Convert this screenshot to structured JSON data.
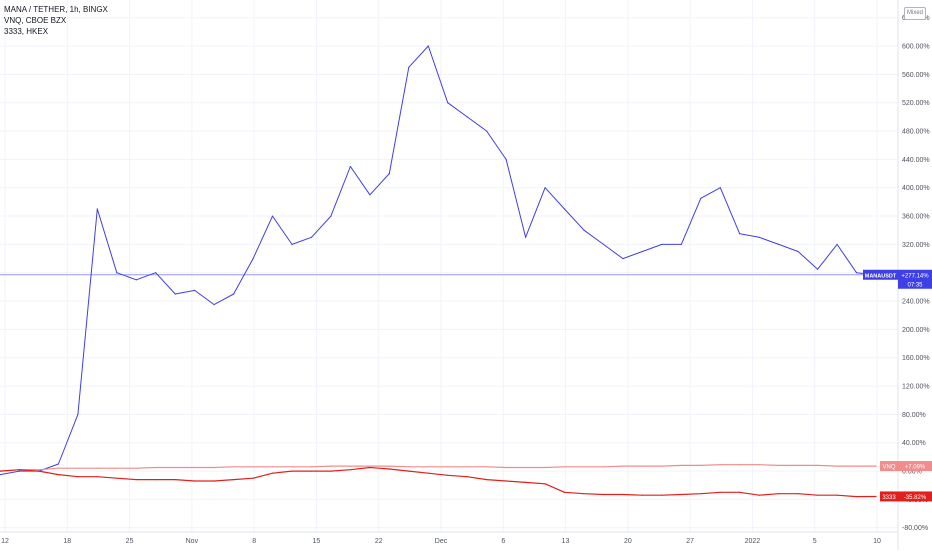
{
  "legend": {
    "line1": "MANA / TETHER, 1h, BINGX",
    "line2": "VNQ, CBOE BZX",
    "line3": "3333, HKEX"
  },
  "scale_mode": "Mixed",
  "colors": {
    "mana": "#3f3fe6",
    "vnq": "#f08c8c",
    "hk3333": "#e0201c",
    "mana_hline": "#9999ee",
    "axis_text": "#50535e",
    "grid": "#f0f3fa"
  },
  "chart_data": {
    "type": "line",
    "title": "",
    "xlabel": "",
    "ylabel": "",
    "y_unit": "%",
    "ylim": [
      -86,
      665
    ],
    "grid": true,
    "legend_placement": "top-left",
    "x_axis_labels": [
      "12",
      "18",
      "25",
      "Nov",
      "8",
      "15",
      "22",
      "Dec",
      "6",
      "13",
      "20",
      "27",
      "2022",
      "5",
      "10"
    ],
    "y_axis_labels": [
      "640.00%",
      "600.00%",
      "560.00%",
      "520.00%",
      "480.00%",
      "440.00%",
      "400.00%",
      "360.00%",
      "320.00%",
      "280.00%",
      "240.00%",
      "200.00%",
      "160.00%",
      "120.00%",
      "80.00%",
      "40.00%",
      "0.00%",
      "-40.00%",
      "-80.00%"
    ],
    "x": [
      "Oct 12",
      "Oct 18",
      "Oct 25",
      "Oct 28",
      "Oct 29",
      "Oct 30",
      "Oct 31",
      "Nov 1",
      "Nov 2",
      "Nov 4",
      "Nov 6",
      "Nov 8",
      "Nov 10",
      "Nov 12",
      "Nov 14",
      "Nov 15",
      "Nov 17",
      "Nov 19",
      "Nov 21",
      "Nov 22",
      "Nov 24",
      "Nov 25",
      "Nov 27",
      "Nov 29",
      "Dec 1",
      "Dec 3",
      "Dec 5",
      "Dec 6",
      "Dec 8",
      "Dec 10",
      "Dec 13",
      "Dec 15",
      "Dec 17",
      "Dec 20",
      "Dec 22",
      "Dec 24",
      "Dec 27",
      "Dec 29",
      "Dec 31",
      "Jan 2",
      "Jan 4",
      "Jan 5",
      "Jan 7",
      "Jan 9",
      "Jan 10",
      "Jan 11"
    ],
    "series": [
      {
        "name": "MANAUSDT",
        "values": [
          -5,
          0,
          0,
          10,
          80,
          370,
          280,
          270,
          280,
          250,
          255,
          235,
          250,
          300,
          360,
          320,
          330,
          360,
          430,
          390,
          420,
          570,
          600,
          520,
          500,
          480,
          440,
          330,
          400,
          370,
          340,
          320,
          300,
          310,
          320,
          320,
          385,
          400,
          335,
          330,
          320,
          310,
          285,
          320,
          280,
          277
        ]
      },
      {
        "name": "VNQ",
        "values": [
          0,
          2,
          2,
          4,
          4,
          4,
          4,
          4,
          5,
          5,
          5,
          5,
          6,
          6,
          6,
          6,
          6,
          7,
          7,
          7,
          7,
          6,
          6,
          6,
          6,
          6,
          5,
          5,
          5,
          6,
          6,
          6,
          7,
          7,
          7,
          8,
          8,
          9,
          9,
          9,
          8,
          8,
          8,
          7,
          7,
          7.09
        ]
      },
      {
        "name": "3333",
        "values": [
          0,
          2,
          0,
          -5,
          -8,
          -8,
          -10,
          -12,
          -12,
          -12,
          -14,
          -14,
          -12,
          -10,
          -3,
          0,
          0,
          0,
          2,
          5,
          3,
          0,
          -3,
          -6,
          -8,
          -12,
          -14,
          -16,
          -18,
          -30,
          -32,
          -33,
          -33,
          -34,
          -34,
          -33,
          -32,
          -30,
          -30,
          -34,
          -32,
          -32,
          -34,
          -34,
          -36,
          -35.82
        ]
      }
    ],
    "last_values": [
      {
        "series": "MANAUSDT",
        "label": "MANAUSDT",
        "value_label": "+277.14%",
        "sub_label": "07:35",
        "value": 277.14
      },
      {
        "series": "VNQ",
        "label": "VNQ",
        "value_label": "+7.09%",
        "value": 7.09
      },
      {
        "series": "3333",
        "label": "3333",
        "value_label": "-35.82%",
        "value": -35.82
      }
    ]
  }
}
